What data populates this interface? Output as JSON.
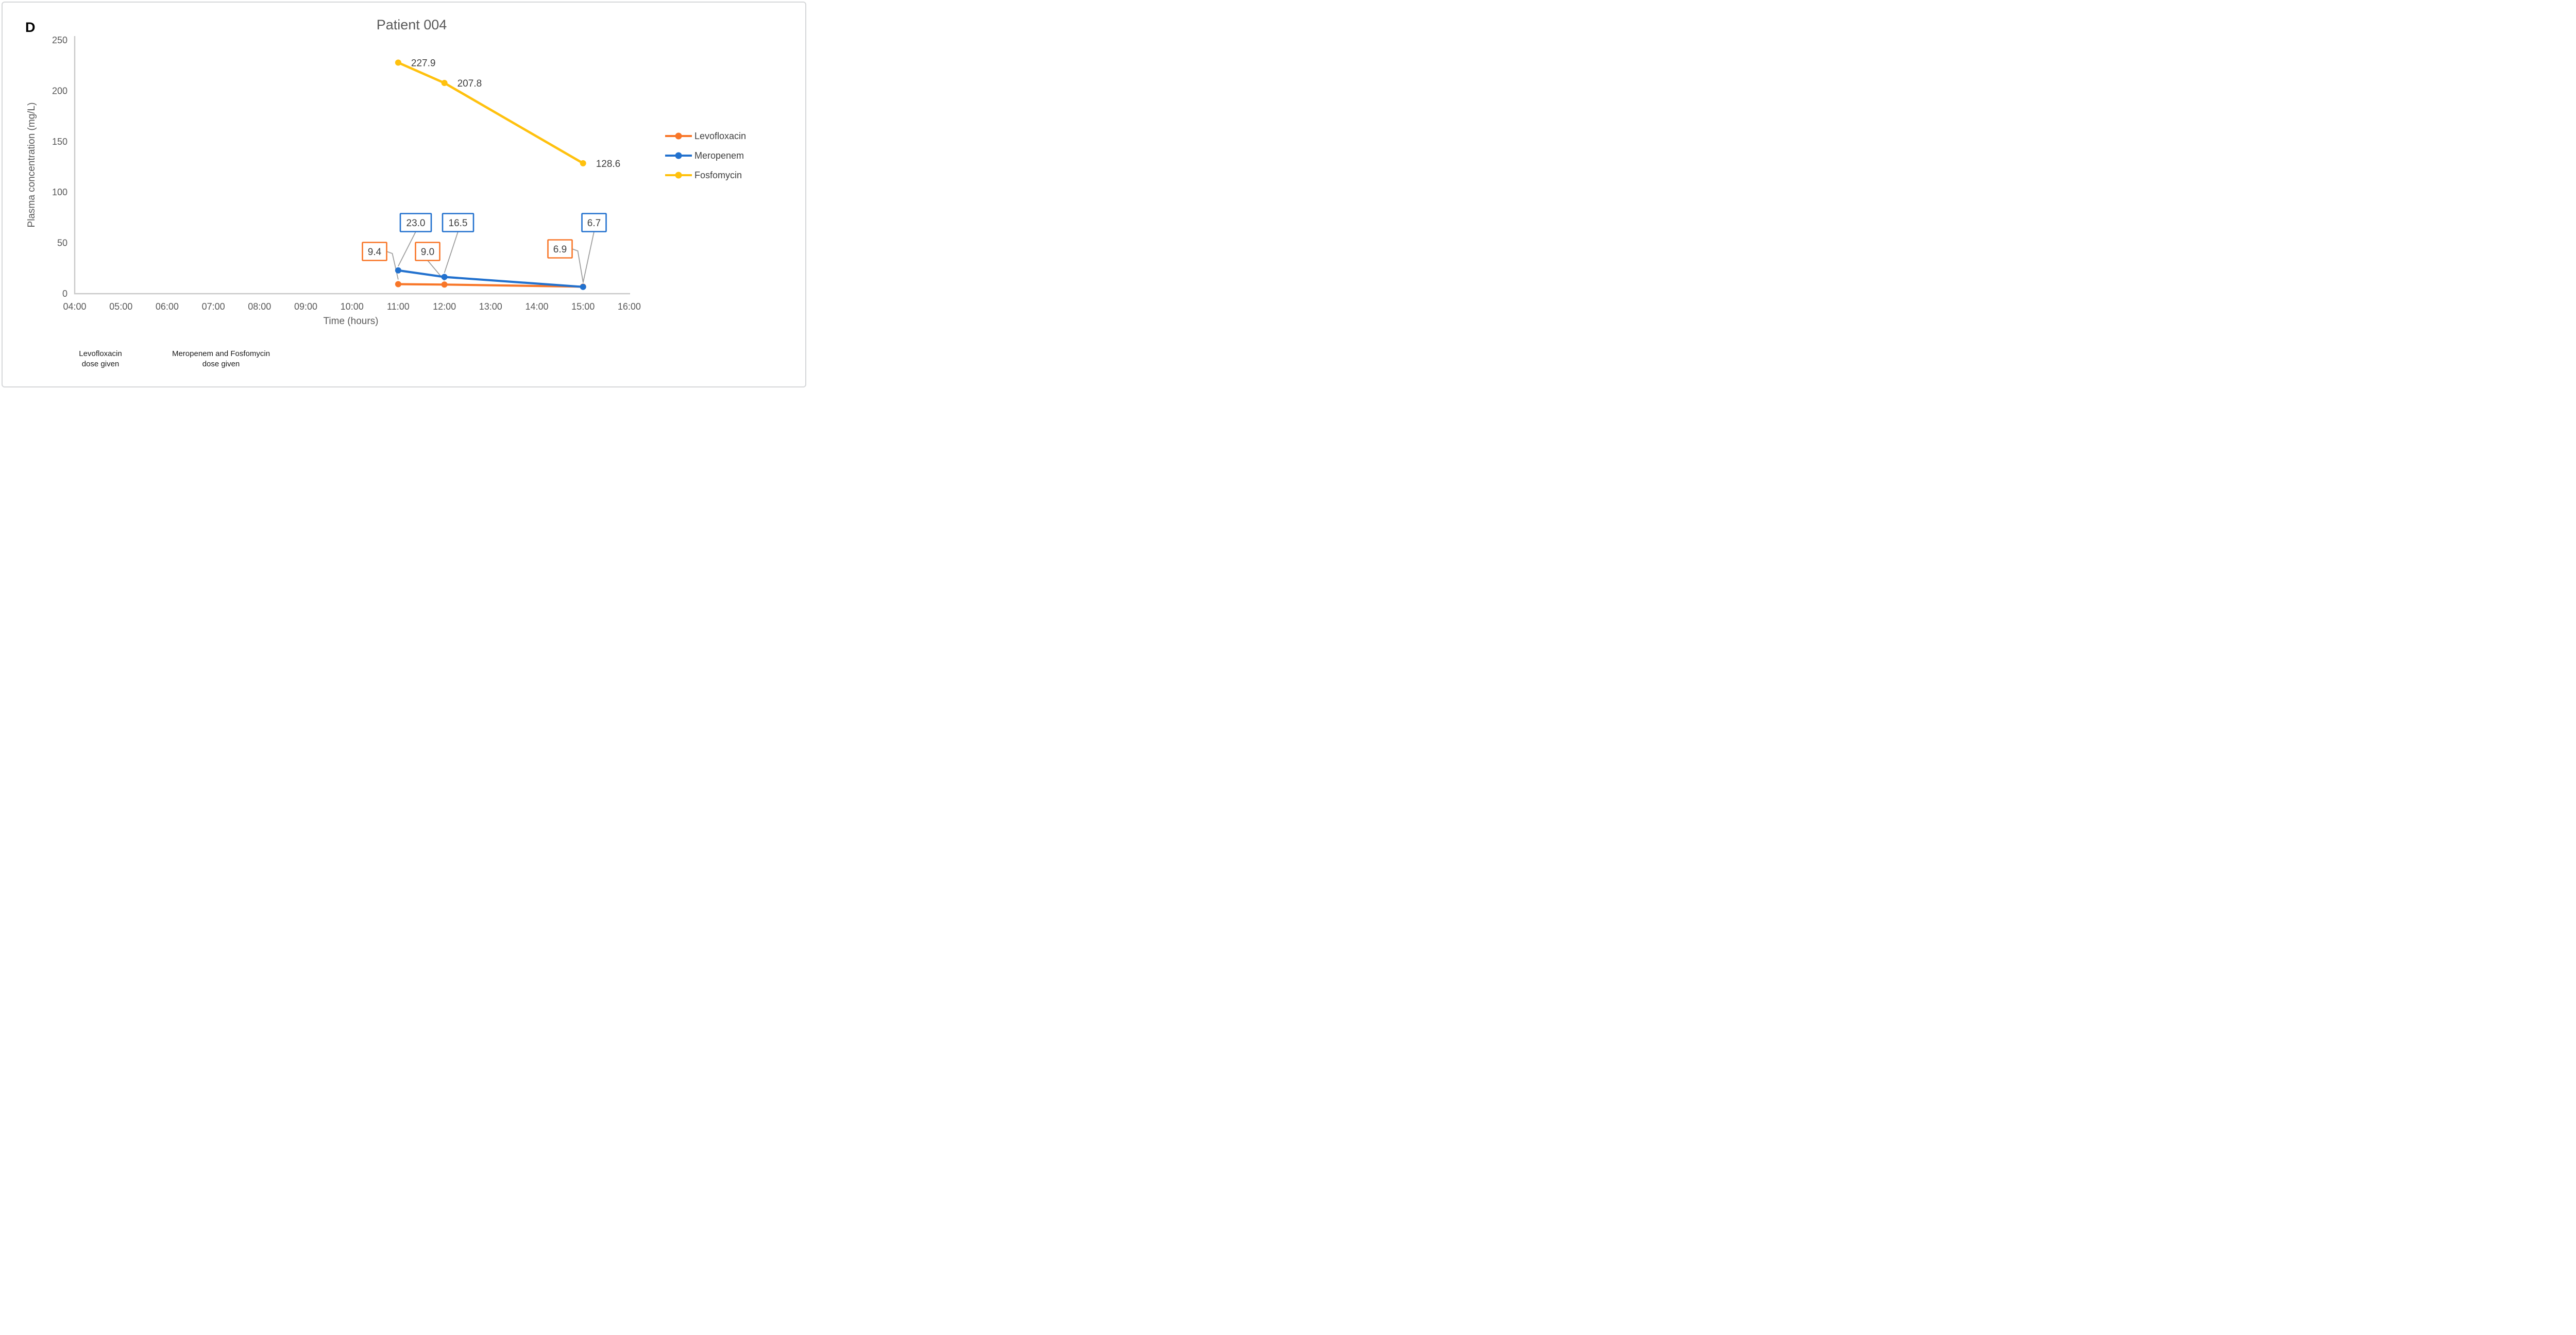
{
  "figure": {
    "panel_label": "D"
  },
  "chart_data": {
    "type": "line",
    "title": "Patient 004",
    "xlabel": "Time (hours)",
    "ylabel": "Plasma concentration (mg/L)",
    "x_ticks": [
      "04:00",
      "05:00",
      "06:00",
      "07:00",
      "08:00",
      "09:00",
      "10:00",
      "11:00",
      "12:00",
      "13:00",
      "14:00",
      "15:00",
      "16:00"
    ],
    "x_tick_hours": [
      4,
      5,
      6,
      7,
      8,
      9,
      10,
      11,
      12,
      13,
      14,
      15,
      16
    ],
    "y_ticks": [
      0,
      50,
      100,
      150,
      200,
      250
    ],
    "ylim": [
      0,
      250
    ],
    "grid": false,
    "legend_position": "right",
    "series": [
      {
        "name": "Levofloxacin",
        "color": "#F87628",
        "x_hours": [
          11,
          12,
          15
        ],
        "x_labels": [
          "11:00",
          "12:00",
          "15:00"
        ],
        "values": [
          9.4,
          9.0,
          6.9
        ],
        "label_style": "boxed"
      },
      {
        "name": "Meropenem",
        "color": "#2271CE",
        "x_hours": [
          11,
          12,
          15
        ],
        "x_labels": [
          "11:00",
          "12:00",
          "15:00"
        ],
        "values": [
          23.0,
          16.5,
          6.7
        ],
        "label_style": "boxed"
      },
      {
        "name": "Fosfomycin",
        "color": "#FFC10E",
        "x_hours": [
          11,
          12,
          15
        ],
        "x_labels": [
          "11:00",
          "12:00",
          "15:00"
        ],
        "values": [
          227.9,
          207.8,
          128.6
        ],
        "label_style": "plain"
      }
    ]
  },
  "annotations": [
    {
      "lines": [
        "Levofloxacin",
        "dose given"
      ]
    },
    {
      "lines": [
        "Meropenem and Fosfomycin",
        "dose given"
      ]
    }
  ],
  "colors": {
    "axis_line": "#c9c9c9",
    "leader_line": "#9e9e9e",
    "tick_text": "#595959",
    "data_label_text": "#3f3f3f",
    "title_text": "#595959",
    "callout_fill": "#ffffff"
  }
}
